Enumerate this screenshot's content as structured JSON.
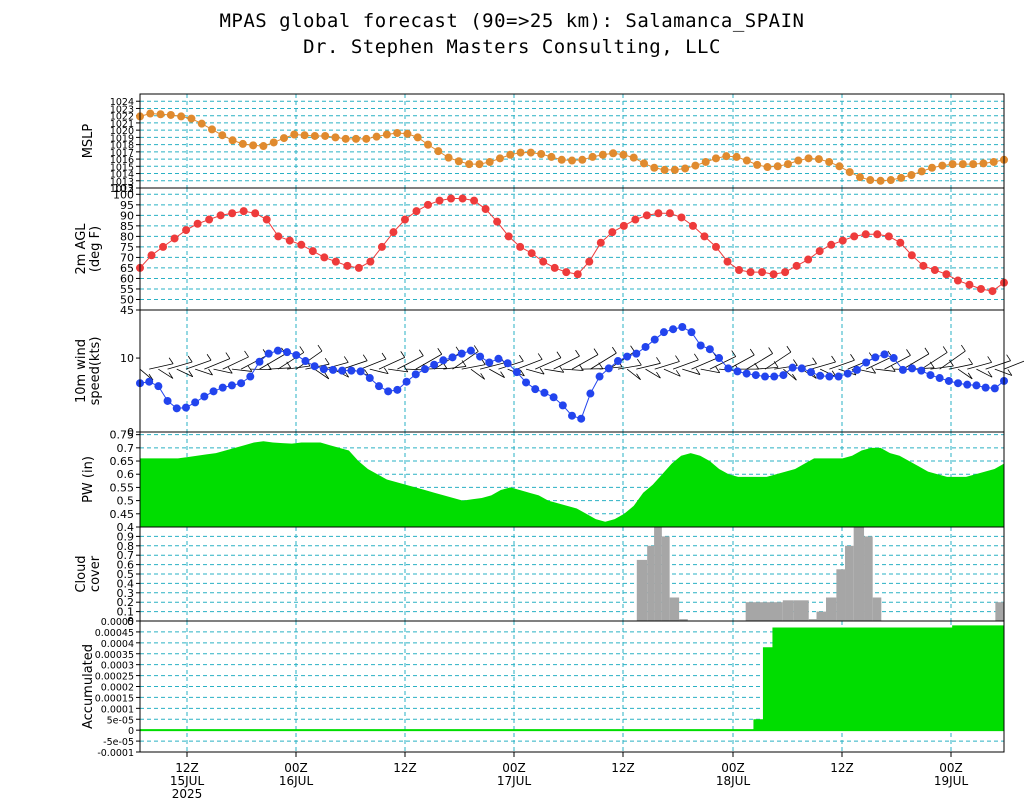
{
  "title": "MPAS global forecast (90=>25 km): Salamanca_SPAIN",
  "subtitle": "Dr. Stephen Masters Consulting, LLC",
  "time_axis": {
    "ticks": [
      {
        "label": "12Z",
        "date": "15JUL",
        "year": "2025"
      },
      {
        "label": "00Z",
        "date": "16JUL"
      },
      {
        "label": "12Z",
        "date": ""
      },
      {
        "label": "00Z",
        "date": "17JUL"
      },
      {
        "label": "12Z",
        "date": ""
      },
      {
        "label": "00Z",
        "date": "18JUL"
      },
      {
        "label": "12Z",
        "date": ""
      },
      {
        "label": "00Z",
        "date": "19JUL"
      }
    ]
  },
  "colors": {
    "mslp": "#e08a2e",
    "temp": "#ee3b3b",
    "wind": "#2244ee",
    "pw": "#00dd00",
    "cloud": "#a6a6a6",
    "precip": "#00dd00",
    "grid": "#2ab1c4"
  },
  "chart_data": [
    {
      "type": "line",
      "ylabel": "MSLP",
      "ylim": [
        1012,
        1025
      ],
      "yticks": [
        "1012",
        "1013",
        "1014",
        "1015",
        "1016",
        "1017",
        "1018",
        "1019",
        "1020",
        "1021",
        "1022",
        "1023",
        "1024"
      ],
      "series": [
        {
          "values": [
            1021.9,
            1022.3,
            1022.2,
            1022.1,
            1021.9,
            1021.6,
            1020.9,
            1020.1,
            1019.3,
            1018.6,
            1018.1,
            1017.9,
            1017.8,
            1018.3,
            1018.9,
            1019.4,
            1019.3,
            1019.2,
            1019.2,
            1019.0,
            1018.8,
            1018.8,
            1018.8,
            1019.1,
            1019.4,
            1019.6,
            1019.5,
            1019.0,
            1018.0,
            1017.1,
            1016.2,
            1015.7,
            1015.3,
            1015.3,
            1015.6,
            1016.1,
            1016.6,
            1016.9,
            1016.9,
            1016.7,
            1016.3,
            1015.9,
            1015.8,
            1015.9,
            1016.3,
            1016.6,
            1016.8,
            1016.6,
            1016.2,
            1015.4,
            1014.8,
            1014.5,
            1014.5,
            1014.7,
            1015.1,
            1015.6,
            1016.1,
            1016.4,
            1016.3,
            1015.8,
            1015.2,
            1014.9,
            1015.0,
            1015.3,
            1015.8,
            1016.1,
            1016.0,
            1015.6,
            1015.0,
            1014.2,
            1013.5,
            1013.1,
            1013.0,
            1013.1,
            1013.4,
            1013.8,
            1014.3,
            1014.8,
            1015.1,
            1015.3,
            1015.3,
            1015.3,
            1015.4,
            1015.6,
            1015.9
          ]
        }
      ]
    },
    {
      "type": "line",
      "ylabel": "2m AGL (deg F)",
      "ylim": [
        45,
        103
      ],
      "yticks": [
        "45",
        "50",
        "55",
        "60",
        "65",
        "70",
        "75",
        "80",
        "85",
        "90",
        "95",
        "100",
        "103"
      ],
      "series": [
        {
          "values": [
            65,
            71,
            75,
            79,
            83,
            86,
            88,
            90,
            91,
            92,
            91,
            88,
            80,
            78,
            76,
            73,
            70,
            68,
            66,
            65,
            68,
            75,
            82,
            88,
            92,
            95,
            97,
            98,
            98,
            97,
            93,
            87,
            80,
            75,
            72,
            68,
            65,
            63,
            62,
            68,
            77,
            82,
            85,
            88,
            90,
            91,
            91,
            89,
            85,
            80,
            75,
            68,
            64,
            63,
            63,
            62,
            63,
            66,
            69,
            73,
            76,
            78,
            80,
            81,
            81,
            80,
            77,
            71,
            66,
            64,
            62,
            59,
            57,
            55,
            54,
            58
          ]
        }
      ]
    },
    {
      "type": "line",
      "ylabel": "10m wind speed(kts)",
      "ylim": [
        0,
        16.5
      ],
      "yticks": [
        "0",
        "10"
      ],
      "series": [
        {
          "values": [
            6.6,
            6.8,
            6.2,
            4.2,
            3.2,
            3.3,
            4.0,
            4.8,
            5.5,
            6.0,
            6.3,
            6.6,
            7.5,
            9.5,
            10.6,
            11.0,
            10.8,
            10.4,
            9.6,
            8.9,
            8.5,
            8.4,
            8.3,
            8.3,
            8.2,
            7.3,
            6.2,
            5.5,
            5.7,
            6.8,
            7.8,
            8.5,
            9.1,
            9.7,
            10.1,
            10.6,
            11.0,
            10.2,
            9.4,
            9.9,
            9.3,
            8.1,
            6.7,
            5.8,
            5.3,
            4.7,
            3.6,
            2.2,
            1.8,
            5.2,
            7.5,
            8.6,
            9.6,
            10.2,
            10.6,
            11.5,
            12.5,
            13.5,
            13.9,
            14.2,
            13.5,
            11.7,
            11.2,
            10.0,
            8.6,
            8.2,
            7.9,
            7.7,
            7.5,
            7.5,
            7.7,
            8.7,
            8.6,
            8.1,
            7.6,
            7.5,
            7.5,
            7.9,
            8.4,
            9.4,
            10.1,
            10.5,
            10.0,
            8.4,
            8.6,
            8.3,
            7.7,
            7.3,
            6.9,
            6.6,
            6.4,
            6.3,
            6.0,
            5.9,
            6.9
          ]
        }
      ]
    },
    {
      "type": "area",
      "ylabel": "PW (in)",
      "ylim": [
        0.4,
        0.76
      ],
      "yticks": [
        "0.4",
        "0.45",
        "0.5",
        "0.55",
        "0.6",
        "0.65",
        "0.7",
        "0.75"
      ],
      "series": [
        {
          "values": [
            0.66,
            0.66,
            0.66,
            0.66,
            0.66,
            0.665,
            0.67,
            0.675,
            0.68,
            0.69,
            0.7,
            0.71,
            0.72,
            0.725,
            0.72,
            0.718,
            0.716,
            0.72,
            0.72,
            0.72,
            0.71,
            0.7,
            0.69,
            0.65,
            0.62,
            0.6,
            0.58,
            0.57,
            0.56,
            0.55,
            0.54,
            0.53,
            0.52,
            0.51,
            0.5,
            0.505,
            0.51,
            0.52,
            0.54,
            0.55,
            0.54,
            0.53,
            0.52,
            0.5,
            0.49,
            0.48,
            0.47,
            0.45,
            0.43,
            0.42,
            0.43,
            0.45,
            0.48,
            0.53,
            0.56,
            0.6,
            0.64,
            0.67,
            0.68,
            0.67,
            0.65,
            0.62,
            0.6,
            0.59,
            0.59,
            0.59,
            0.59,
            0.6,
            0.61,
            0.62,
            0.64,
            0.66,
            0.66,
            0.66,
            0.66,
            0.67,
            0.69,
            0.7,
            0.7,
            0.68,
            0.67,
            0.65,
            0.63,
            0.61,
            0.6,
            0.59,
            0.59,
            0.59,
            0.6,
            0.61,
            0.62,
            0.64
          ]
        }
      ]
    },
    {
      "type": "bar",
      "ylabel": "Cloud cover",
      "ylim": [
        0,
        1
      ],
      "yticks": [
        "0",
        "0.1",
        "0.2",
        "0.3",
        "0.4",
        "0.5",
        "0.6",
        "0.7",
        "0.8",
        "0.9"
      ],
      "bars": [
        {
          "start": 0.575,
          "end": 0.587,
          "value": 0.65
        },
        {
          "start": 0.587,
          "end": 0.595,
          "value": 0.8
        },
        {
          "start": 0.595,
          "end": 0.604,
          "value": 1.0
        },
        {
          "start": 0.604,
          "end": 0.613,
          "value": 0.9
        },
        {
          "start": 0.613,
          "end": 0.624,
          "value": 0.25
        },
        {
          "start": 0.624,
          "end": 0.634,
          "value": 0.02
        },
        {
          "start": 0.701,
          "end": 0.744,
          "value": 0.2
        },
        {
          "start": 0.744,
          "end": 0.756,
          "value": 0.22
        },
        {
          "start": 0.756,
          "end": 0.774,
          "value": 0.22
        },
        {
          "start": 0.774,
          "end": 0.783,
          "value": 0.02
        },
        {
          "start": 0.783,
          "end": 0.794,
          "value": 0.1
        },
        {
          "start": 0.794,
          "end": 0.806,
          "value": 0.25
        },
        {
          "start": 0.806,
          "end": 0.816,
          "value": 0.55
        },
        {
          "start": 0.816,
          "end": 0.826,
          "value": 0.8
        },
        {
          "start": 0.826,
          "end": 0.838,
          "value": 1.0
        },
        {
          "start": 0.838,
          "end": 0.848,
          "value": 0.9
        },
        {
          "start": 0.848,
          "end": 0.858,
          "value": 0.25
        },
        {
          "start": 0.99,
          "end": 1.0,
          "value": 0.2
        }
      ]
    },
    {
      "type": "area",
      "ylabel": "Accumulated",
      "ylim": [
        -0.0001,
        0.0005
      ],
      "yticks": [
        "-0.0001",
        "-5e-05",
        "0",
        "5e-05",
        "0.0001",
        "0.00015",
        "0.0002",
        "0.00025",
        "0.0003",
        "0.00035",
        "0.0004",
        "0.00045",
        "0.0005"
      ],
      "steps": [
        {
          "at": 0.0,
          "value": 0
        },
        {
          "at": 0.71,
          "value": 5e-05
        },
        {
          "at": 0.721,
          "value": 0.00038
        },
        {
          "at": 0.732,
          "value": 0.00047
        },
        {
          "at": 0.93,
          "value": 0.00047
        },
        {
          "at": 0.94,
          "value": 0.00048
        }
      ]
    }
  ]
}
